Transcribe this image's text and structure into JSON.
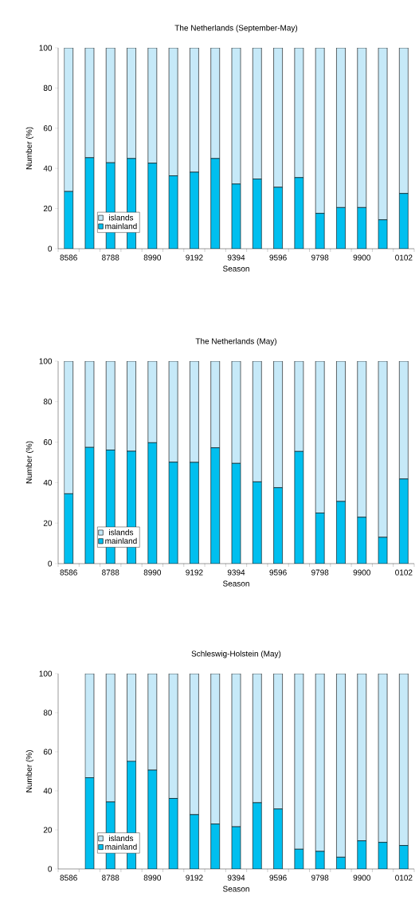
{
  "chart_data": [
    {
      "type": "bar",
      "stacked": true,
      "title": "The Netherlands (September-May)",
      "xlabel": "Season",
      "ylabel": "Number (%)",
      "categories": [
        "8586",
        null,
        "8788",
        null,
        "8990",
        null,
        "9192",
        null,
        "9394",
        null,
        "9596",
        null,
        "9798",
        null,
        "9900",
        null,
        "0102"
      ],
      "series": [
        {
          "name": "mainland",
          "color": "#00bfef",
          "values": [
            28.5,
            45.3,
            42.8,
            44.9,
            42.6,
            36.3,
            38.1,
            44.9,
            32.2,
            34.7,
            30.6,
            35.4,
            17.6,
            20.5,
            20.5,
            14.4,
            27.5
          ]
        },
        {
          "name": "islands",
          "color": "#c6e9f8",
          "values": [
            71.5,
            54.7,
            57.2,
            55.1,
            57.4,
            63.7,
            61.9,
            55.1,
            67.8,
            65.3,
            69.4,
            64.6,
            82.4,
            79.5,
            79.5,
            85.6,
            72.5
          ]
        }
      ],
      "ylim": [
        0,
        100
      ],
      "yticks": [
        0,
        20,
        40,
        60,
        80,
        100
      ],
      "legend": "bottom left"
    },
    {
      "type": "bar",
      "stacked": true,
      "title": "The Netherlands (May)",
      "xlabel": "Season",
      "ylabel": "Number (%)",
      "categories": [
        "8586",
        null,
        "8788",
        null,
        "8990",
        null,
        "9192",
        null,
        "9394",
        null,
        "9596",
        null,
        "9798",
        null,
        "9900",
        null,
        "0102"
      ],
      "series": [
        {
          "name": "mainland",
          "color": "#00bfef",
          "values": [
            34.5,
            57.4,
            56.1,
            55.5,
            59.7,
            50.1,
            50,
            57.2,
            49.5,
            40.4,
            37.5,
            55.4,
            25,
            30.7,
            22.9,
            13,
            41.8
          ]
        },
        {
          "name": "islands",
          "color": "#c6e9f8",
          "values": [
            65.5,
            42.6,
            43.9,
            44.5,
            40.3,
            49.9,
            50,
            42.8,
            50.5,
            59.6,
            62.5,
            44.6,
            75,
            69.3,
            77.1,
            87,
            58.2
          ]
        }
      ],
      "ylim": [
        0,
        100
      ],
      "yticks": [
        0,
        20,
        40,
        60,
        80,
        100
      ],
      "legend": "bottom left"
    },
    {
      "type": "bar",
      "stacked": true,
      "title": "Schleswig-Holstein (May)",
      "xlabel": "Season",
      "ylabel": "Number (%)",
      "categories": [
        "8586",
        null,
        "8788",
        null,
        "8990",
        null,
        "9192",
        null,
        "9394",
        null,
        "9596",
        null,
        "9798",
        null,
        "9900",
        null,
        "0102"
      ],
      "series": [
        {
          "name": "mainland",
          "color": "#00bfef",
          "values": [
            null,
            46.7,
            34.3,
            55.1,
            50.6,
            36.1,
            27.8,
            23,
            21.6,
            33.9,
            30.7,
            10.1,
            9,
            6,
            14.4,
            13.6,
            12
          ]
        },
        {
          "name": "islands",
          "color": "#c6e9f8",
          "values": [
            null,
            53.3,
            65.7,
            44.9,
            49.4,
            63.9,
            72.2,
            77,
            78.4,
            66.1,
            69.3,
            89.9,
            91,
            94,
            85.6,
            86.4,
            88
          ]
        }
      ],
      "ylim": [
        0,
        100
      ],
      "yticks": [
        0,
        20,
        40,
        60,
        80,
        100
      ],
      "legend": "bottom left"
    }
  ]
}
